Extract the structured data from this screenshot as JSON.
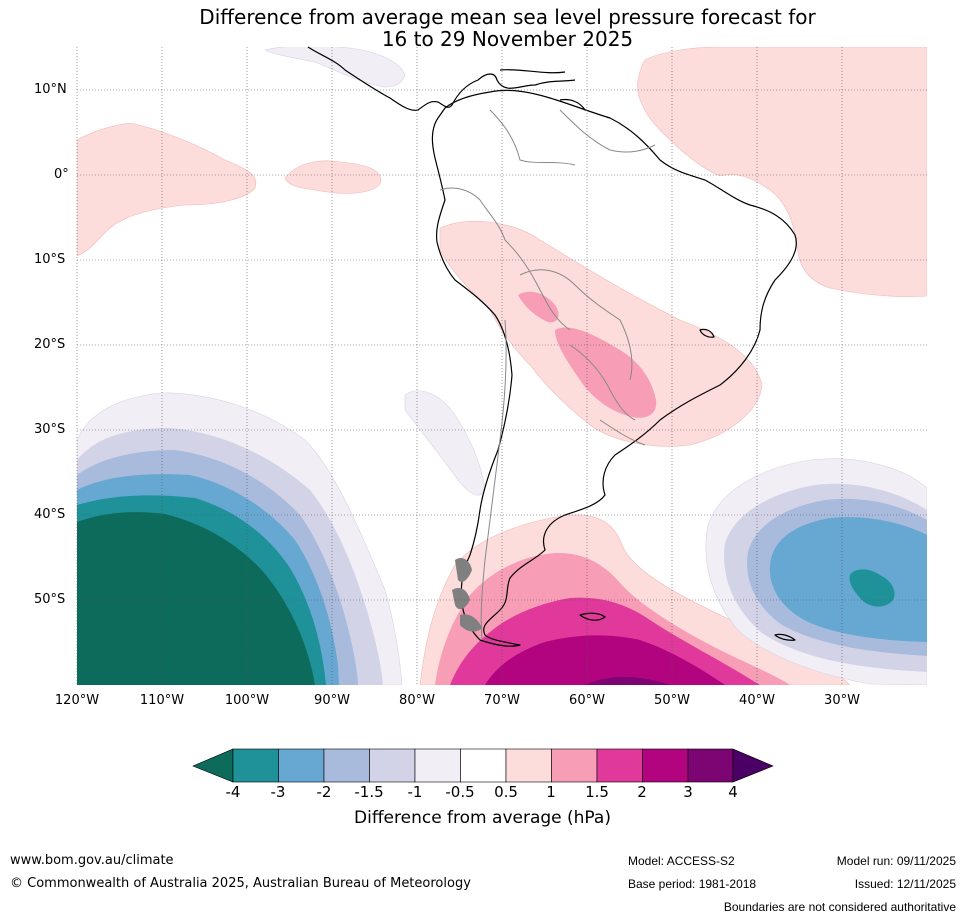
{
  "title": {
    "line1": "Difference from average mean sea level pressure forecast for",
    "line2": "16 to 29 November 2025"
  },
  "map": {
    "lat_labels": [
      "10°N",
      "0°",
      "10°S",
      "20°S",
      "30°S",
      "40°S",
      "50°S"
    ],
    "lon_labels": [
      "120°W",
      "110°W",
      "100°W",
      "90°W",
      "80°W",
      "70°W",
      "60°W",
      "50°W",
      "40°W",
      "30°W"
    ]
  },
  "colorbar": {
    "title": "Difference from average (hPa)",
    "tick_labels": [
      "-4",
      "-3",
      "-2",
      "-1.5",
      "-1",
      "-0.5",
      "0.5",
      "1",
      "1.5",
      "2",
      "3",
      "4"
    ],
    "colors": [
      "#0d6b5c",
      "#1e9199",
      "#66a8d1",
      "#a8bbdc",
      "#d3d3e8",
      "#f1eef5",
      "#ffffff",
      "#fddcdc",
      "#f89db6",
      "#e0399b",
      "#b3047f",
      "#7d0473",
      "#4b0066"
    ]
  },
  "footer": {
    "website": "www.bom.gov.au/climate",
    "copyright": "© Commonwealth of Australia 2025, Australian Bureau of Meteorology",
    "model": "Model: ACCESS-S2",
    "base_period": "Base period: 1981-2018",
    "model_run": "Model run: 09/11/2025",
    "issued": "Issued: 12/11/2025",
    "disclaimer": "Boundaries are not considered authoritative"
  }
}
